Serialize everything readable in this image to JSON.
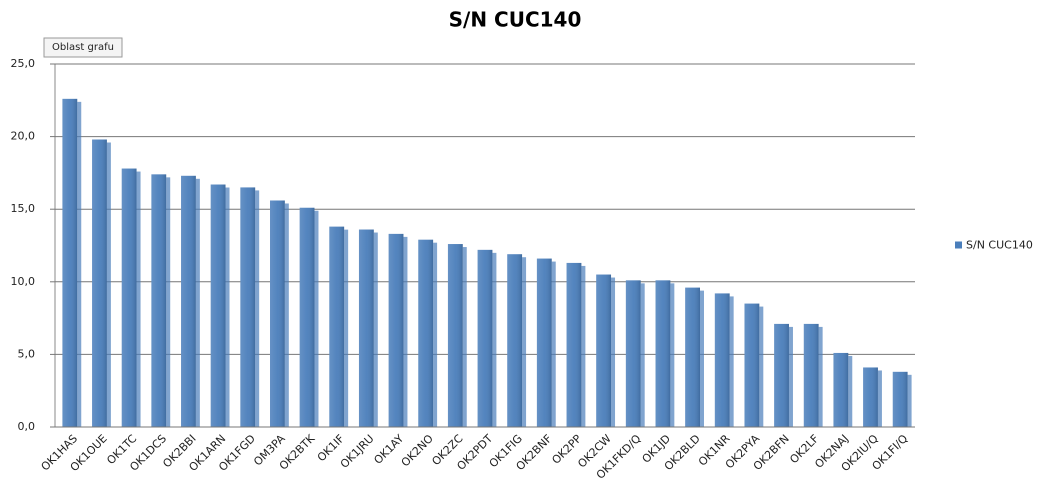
{
  "chart_data": {
    "type": "bar",
    "title": "S/N  CUC140",
    "annotation": "Oblast grafu",
    "categories": [
      "OK1HAS",
      "OK1OUE",
      "OK1TC",
      "OK1DCS",
      "OK2BBI",
      "OK1ARN",
      "OK1FGD",
      "OM3PA",
      "OK2BTK",
      "OK1IF",
      "OK1JRU",
      "OK1AY",
      "OK2NO",
      "OK2ZC",
      "OK2PDT",
      "OK1FIG",
      "OK2BNF",
      "OK2PP",
      "OK2CW",
      "OK1FKD/Q",
      "OK1JD",
      "OK2BLD",
      "OK1NR",
      "OK2PYA",
      "OK2BFN",
      "OK2LF",
      "OK2NAJ",
      "OK2IU/Q",
      "OK1FI/Q"
    ],
    "series": [
      {
        "name": "S/N  CUC140",
        "color": "#4a7ebb",
        "values": [
          22.6,
          19.8,
          17.8,
          17.4,
          17.3,
          16.7,
          16.5,
          15.6,
          15.1,
          13.8,
          13.6,
          13.3,
          12.9,
          12.6,
          12.2,
          11.9,
          11.6,
          11.3,
          10.5,
          10.1,
          10.1,
          9.6,
          9.2,
          8.5,
          7.1,
          7.1,
          5.1,
          4.1,
          3.8
        ]
      }
    ],
    "ylim": [
      0,
      25
    ],
    "yticks": [
      {
        "value": 0,
        "label": "0,0"
      },
      {
        "value": 5,
        "label": "5,0"
      },
      {
        "value": 10,
        "label": "10,0"
      },
      {
        "value": 15,
        "label": "15,0"
      },
      {
        "value": 20,
        "label": "20,0"
      },
      {
        "value": 25,
        "label": "25,0"
      }
    ],
    "grid": true,
    "legend": "right"
  }
}
